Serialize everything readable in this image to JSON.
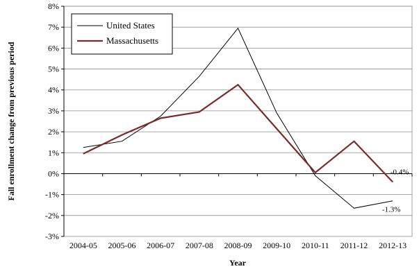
{
  "chart_data": {
    "type": "line",
    "categories": [
      "2004-05",
      "2005-06",
      "2006-07",
      "2007-08",
      "2008-09",
      "2009-10",
      "2010-11",
      "2011-12",
      "2012-13"
    ],
    "series": [
      {
        "name": "United States",
        "values": [
          1.25,
          1.55,
          2.75,
          4.65,
          6.95,
          2.9,
          -0.1,
          -1.65,
          -1.3
        ],
        "color": "#000000"
      },
      {
        "name": "Massachusetts",
        "values": [
          0.95,
          1.85,
          2.65,
          2.95,
          4.25,
          2.15,
          0.05,
          1.55,
          -0.4
        ],
        "color": "#7b2a2a"
      }
    ],
    "xlabel": "Year",
    "ylabel": "Fall enrollment change from previous period",
    "ylim": [
      -3,
      8
    ],
    "yticks": [
      -3,
      -2,
      -1,
      0,
      1,
      2,
      3,
      4,
      5,
      6,
      7,
      8
    ],
    "ytick_labels": [
      "-3%",
      "-2%",
      "-1%",
      "0%",
      "1%",
      "2%",
      "3%",
      "4%",
      "5%",
      "6%",
      "7%",
      "8%"
    ],
    "grid": "horizontal",
    "legend": "top-left",
    "annotations": [
      {
        "text": "-0.4%",
        "category": "2012-13",
        "value": -0.4
      },
      {
        "text": "-1.3%",
        "category": "2012-13",
        "value": -1.3
      }
    ]
  }
}
